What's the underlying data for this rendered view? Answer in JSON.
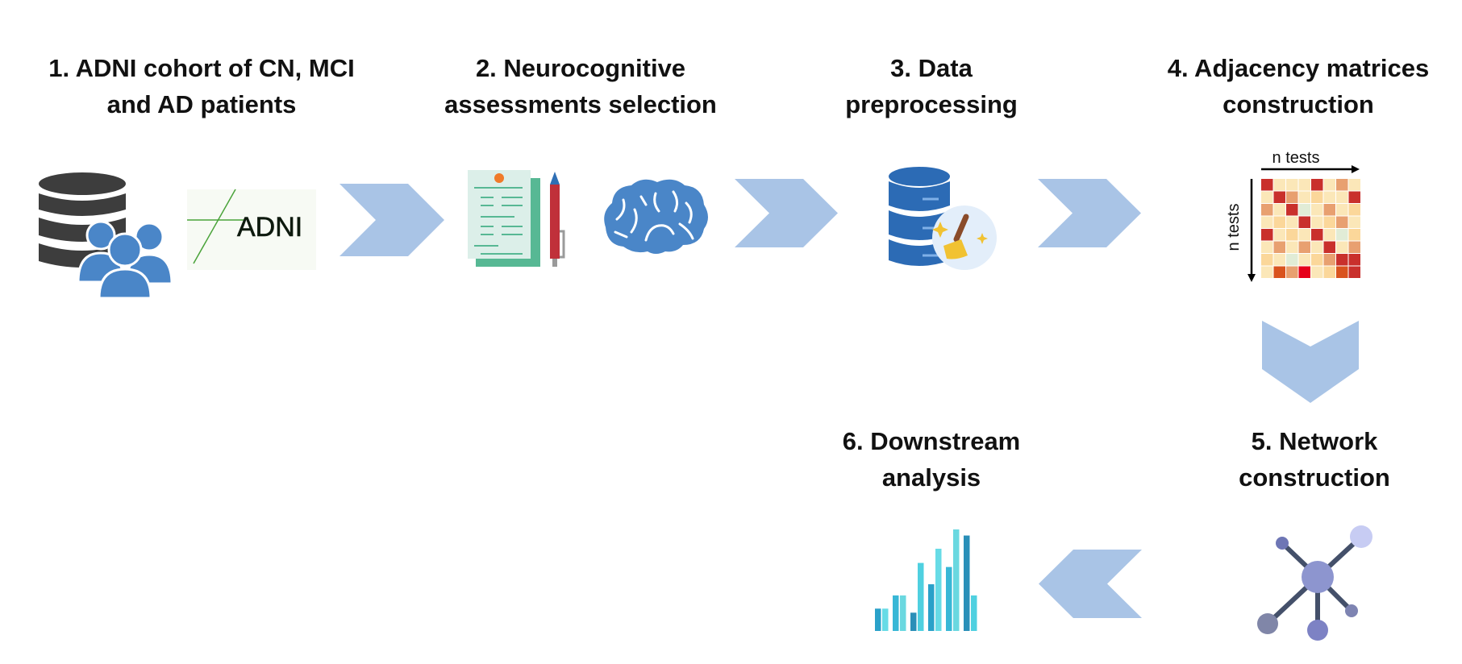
{
  "steps": [
    {
      "id": 1,
      "line1": "1. ADNI cohort of CN, MCI",
      "line2": "and AD patients"
    },
    {
      "id": 2,
      "line1": "2. Neurocognitive",
      "line2": "assessments selection"
    },
    {
      "id": 3,
      "line1": "3. Data",
      "line2": "preprocessing"
    },
    {
      "id": 4,
      "line1": "4. Adjacency matrices",
      "line2": "construction"
    },
    {
      "id": 5,
      "line1": "5. Network",
      "line2": "construction"
    },
    {
      "id": 6,
      "line1": "6. Downstream",
      "line2": "analysis"
    }
  ],
  "adni_logo": {
    "text": "ADNI"
  },
  "matrix": {
    "x_axis_label": "n tests",
    "y_axis_label": "n tests",
    "cells": [
      [
        "#c9302c",
        "#fbe7b8",
        "#fbe7b8",
        "#fbe7b8",
        "#c9302c",
        "#fbe7b8",
        "#e8a070",
        "#fbe7b8"
      ],
      [
        "#fbe7b8",
        "#c9302c",
        "#e8a070",
        "#fbe7b8",
        "#fbd79a",
        "#fbe7b8",
        "#fbe7b8",
        "#c9302c"
      ],
      [
        "#e8a070",
        "#fbe7b8",
        "#c9302c",
        "#e1ecd6",
        "#fbe7b8",
        "#e8a070",
        "#fbe7b8",
        "#fbd79a"
      ],
      [
        "#fbe7b8",
        "#fbd79a",
        "#fbe7b8",
        "#c9302c",
        "#fbe7b8",
        "#fbd79a",
        "#e8a070",
        "#fbe7b8"
      ],
      [
        "#c9302c",
        "#fbe7b8",
        "#fbd79a",
        "#fbe7b8",
        "#c9302c",
        "#fbe7b8",
        "#e1ecd6",
        "#fbd79a"
      ],
      [
        "#fbe7b8",
        "#e8a070",
        "#fbe7b8",
        "#e8a070",
        "#fbe7b8",
        "#c9302c",
        "#fbe7b8",
        "#e8a070"
      ],
      [
        "#fbd79a",
        "#fbe7b8",
        "#e1ecd6",
        "#fbe7b8",
        "#fbd79a",
        "#e8a070",
        "#c9302c",
        "#c9302c"
      ],
      [
        "#fbe7b8",
        "#d9531e",
        "#e8a070",
        "#e6001a",
        "#fbe7b8",
        "#fbd79a",
        "#d9531e",
        "#c9302c"
      ]
    ]
  },
  "colors": {
    "arrow": "#a9c4e6",
    "title": "#111111",
    "icon_blue": "#4a86c8",
    "db_gray": "#3d3d3d"
  }
}
